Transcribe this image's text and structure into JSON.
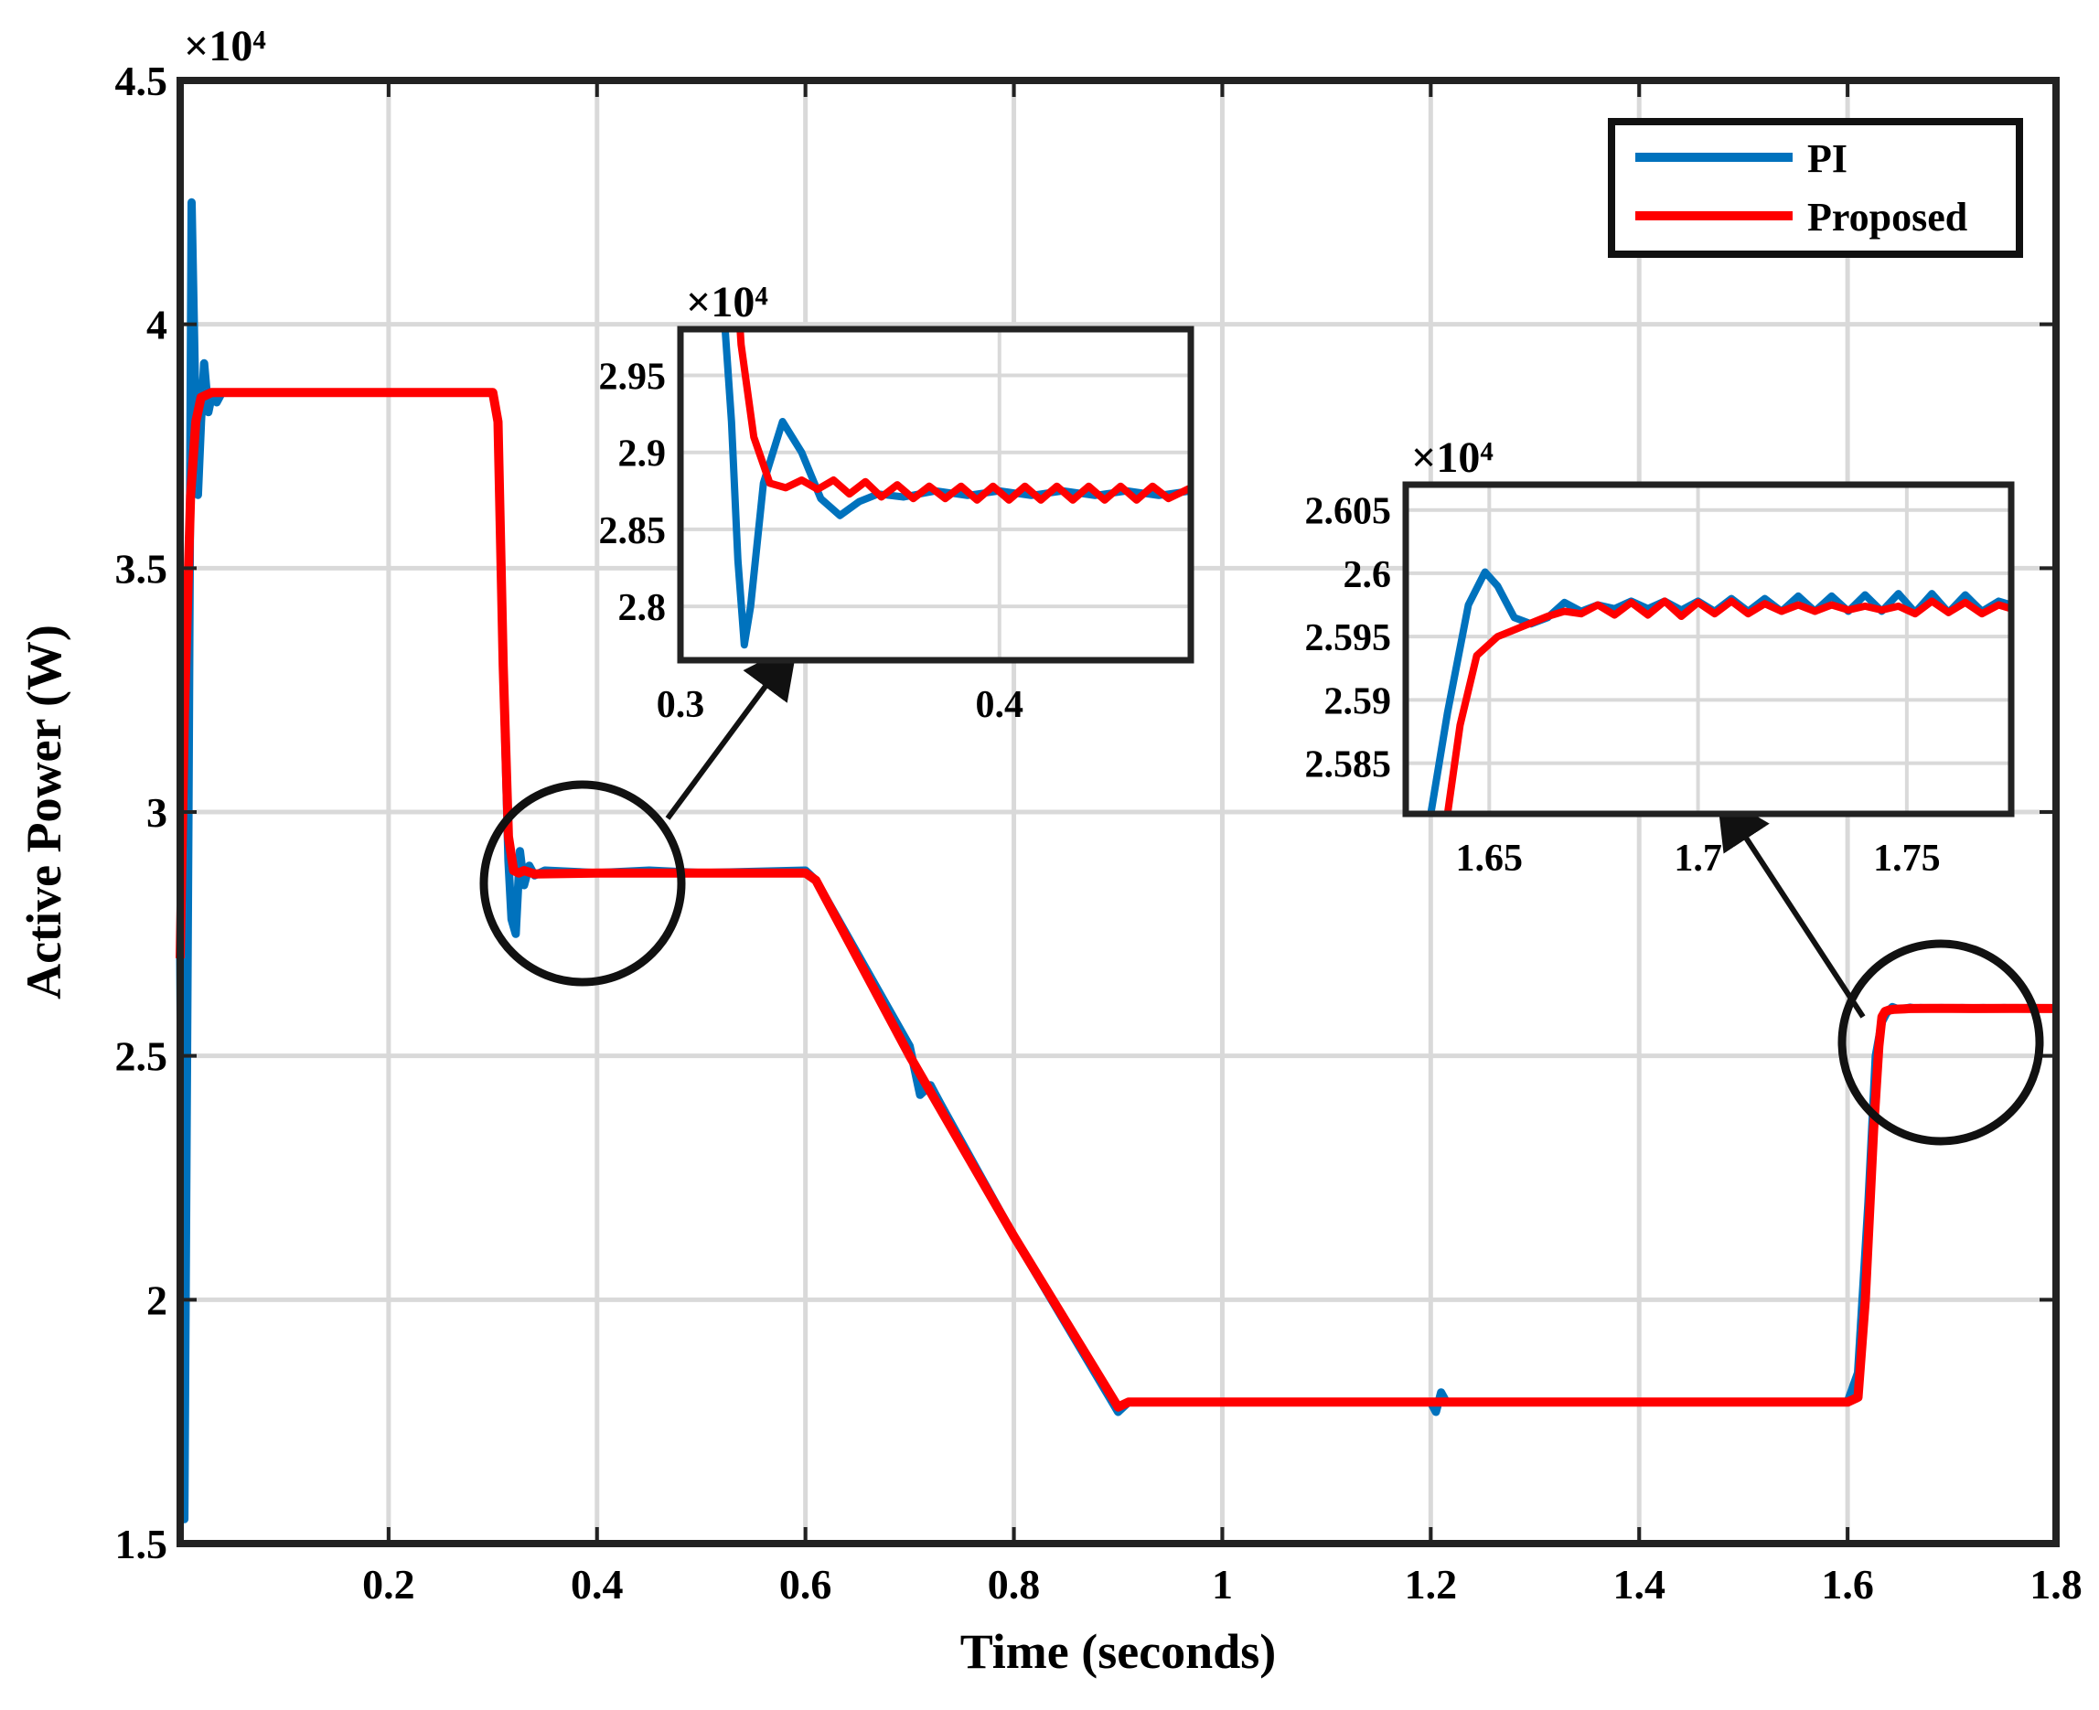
{
  "chart_data": {
    "type": "line",
    "xlabel": "Time (seconds)",
    "ylabel": "Active Power (W)",
    "y_exponent": "×10⁴",
    "xlim": [
      0.0,
      1.8
    ],
    "ylim": [
      1.5,
      4.5
    ],
    "xticks": [
      0.2,
      0.4,
      0.6,
      0.8,
      1,
      1.2,
      1.4,
      1.6,
      1.8
    ],
    "xtick_labels": [
      "0.2",
      "0.4",
      "0.6",
      "0.8",
      "1",
      "1.2",
      "1.4",
      "1.6",
      "1.8"
    ],
    "yticks": [
      1.5,
      2,
      2.5,
      3,
      3.5,
      4,
      4.5
    ],
    "ytick_labels": [
      "1.5",
      "2",
      "2.5",
      "3",
      "3.5",
      "4",
      "4.5"
    ],
    "grid": true,
    "legend_position": "top-right",
    "series": [
      {
        "name": "PI",
        "color": "#0072bd",
        "points": [
          [
            0.0,
            2.7
          ],
          [
            0.004,
            1.55
          ],
          [
            0.008,
            3.0
          ],
          [
            0.011,
            4.25
          ],
          [
            0.014,
            3.9
          ],
          [
            0.017,
            3.65
          ],
          [
            0.02,
            3.8
          ],
          [
            0.023,
            3.92
          ],
          [
            0.027,
            3.82
          ],
          [
            0.031,
            3.86
          ],
          [
            0.035,
            3.84
          ],
          [
            0.04,
            3.86
          ],
          [
            0.05,
            3.86
          ],
          [
            0.3,
            3.86
          ],
          [
            0.305,
            3.8
          ],
          [
            0.31,
            3.3
          ],
          [
            0.315,
            2.9
          ],
          [
            0.318,
            2.78
          ],
          [
            0.322,
            2.75
          ],
          [
            0.326,
            2.92
          ],
          [
            0.33,
            2.85
          ],
          [
            0.335,
            2.89
          ],
          [
            0.34,
            2.87
          ],
          [
            0.35,
            2.88
          ],
          [
            0.4,
            2.875
          ],
          [
            0.45,
            2.88
          ],
          [
            0.5,
            2.875
          ],
          [
            0.6,
            2.88
          ],
          [
            0.61,
            2.86
          ],
          [
            0.7,
            2.52
          ],
          [
            0.71,
            2.42
          ],
          [
            0.72,
            2.44
          ],
          [
            0.73,
            2.4
          ],
          [
            0.8,
            2.13
          ],
          [
            0.9,
            1.77
          ],
          [
            0.91,
            1.79
          ],
          [
            1.0,
            1.79
          ],
          [
            1.1,
            1.79
          ],
          [
            1.2,
            1.79
          ],
          [
            1.205,
            1.77
          ],
          [
            1.21,
            1.81
          ],
          [
            1.215,
            1.79
          ],
          [
            1.3,
            1.79
          ],
          [
            1.45,
            1.79
          ],
          [
            1.6,
            1.79
          ],
          [
            1.61,
            1.85
          ],
          [
            1.62,
            2.2
          ],
          [
            1.627,
            2.5
          ],
          [
            1.633,
            2.57
          ],
          [
            1.637,
            2.587
          ],
          [
            1.643,
            2.6
          ],
          [
            1.648,
            2.596
          ],
          [
            1.655,
            2.597
          ],
          [
            1.66,
            2.599
          ],
          [
            1.665,
            2.597
          ],
          [
            1.67,
            2.598
          ],
          [
            1.68,
            2.5975
          ],
          [
            1.69,
            2.598
          ],
          [
            1.7,
            2.5975
          ],
          [
            1.71,
            2.598
          ],
          [
            1.72,
            2.5975
          ],
          [
            1.73,
            2.598
          ],
          [
            1.74,
            2.5975
          ],
          [
            1.75,
            2.598
          ],
          [
            1.76,
            2.5975
          ],
          [
            1.8,
            2.597
          ]
        ]
      },
      {
        "name": "Proposed",
        "color": "#ff0000",
        "points": [
          [
            0.0,
            2.7
          ],
          [
            0.004,
            3.2
          ],
          [
            0.01,
            3.65
          ],
          [
            0.015,
            3.8
          ],
          [
            0.02,
            3.85
          ],
          [
            0.03,
            3.86
          ],
          [
            0.05,
            3.86
          ],
          [
            0.3,
            3.86
          ],
          [
            0.305,
            3.8
          ],
          [
            0.31,
            3.3
          ],
          [
            0.315,
            2.95
          ],
          [
            0.32,
            2.88
          ],
          [
            0.325,
            2.875
          ],
          [
            0.33,
            2.88
          ],
          [
            0.34,
            2.873
          ],
          [
            0.4,
            2.875
          ],
          [
            0.5,
            2.875
          ],
          [
            0.6,
            2.875
          ],
          [
            0.61,
            2.86
          ],
          [
            0.7,
            2.5
          ],
          [
            0.8,
            2.13
          ],
          [
            0.9,
            1.78
          ],
          [
            0.91,
            1.79
          ],
          [
            1.0,
            1.79
          ],
          [
            1.2,
            1.79
          ],
          [
            1.3,
            1.79
          ],
          [
            1.45,
            1.79
          ],
          [
            1.6,
            1.79
          ],
          [
            1.61,
            1.8
          ],
          [
            1.617,
            2.0
          ],
          [
            1.625,
            2.35
          ],
          [
            1.63,
            2.52
          ],
          [
            1.633,
            2.58
          ],
          [
            1.636,
            2.591
          ],
          [
            1.64,
            2.594
          ],
          [
            1.645,
            2.5955
          ],
          [
            1.655,
            2.5965
          ],
          [
            1.66,
            2.597
          ],
          [
            1.68,
            2.5972
          ],
          [
            1.7,
            2.5972
          ],
          [
            1.72,
            2.597
          ],
          [
            1.76,
            2.5972
          ],
          [
            1.8,
            2.597
          ]
        ]
      }
    ],
    "annotations": [
      {
        "type": "zoom_inset",
        "region_center": [
          0.4,
          2.875
        ],
        "xlim": [
          0.3,
          0.46
        ],
        "ylim": [
          2.765,
          2.98
        ],
        "xticks": [
          0.3,
          0.4
        ],
        "xtick_labels": [
          "0.3",
          "0.4"
        ],
        "yticks": [
          2.8,
          2.85,
          2.9,
          2.95
        ],
        "ytick_labels": [
          "2.8",
          "2.85",
          "2.9",
          "2.95"
        ],
        "y_exponent": "×10⁴",
        "series": [
          {
            "name": "PI",
            "points": [
              [
                0.31,
                3.1
              ],
              [
                0.316,
                2.92
              ],
              [
                0.318,
                2.83
              ],
              [
                0.32,
                2.775
              ],
              [
                0.322,
                2.8
              ],
              [
                0.326,
                2.88
              ],
              [
                0.332,
                2.92
              ],
              [
                0.338,
                2.9
              ],
              [
                0.344,
                2.87
              ],
              [
                0.35,
                2.859
              ],
              [
                0.356,
                2.868
              ],
              [
                0.362,
                2.873
              ],
              [
                0.37,
                2.871
              ],
              [
                0.38,
                2.875
              ],
              [
                0.39,
                2.872
              ],
              [
                0.4,
                2.875
              ],
              [
                0.41,
                2.872
              ],
              [
                0.42,
                2.875
              ],
              [
                0.43,
                2.872
              ],
              [
                0.44,
                2.875
              ],
              [
                0.45,
                2.872
              ],
              [
                0.46,
                2.875
              ]
            ]
          },
          {
            "name": "Proposed",
            "points": [
              [
                0.315,
                3.1
              ],
              [
                0.319,
                2.97
              ],
              [
                0.323,
                2.91
              ],
              [
                0.328,
                2.88
              ],
              [
                0.333,
                2.877
              ],
              [
                0.338,
                2.882
              ],
              [
                0.343,
                2.876
              ],
              [
                0.348,
                2.882
              ],
              [
                0.353,
                2.873
              ],
              [
                0.358,
                2.881
              ],
              [
                0.363,
                2.871
              ],
              [
                0.368,
                2.879
              ],
              [
                0.373,
                2.87
              ],
              [
                0.378,
                2.878
              ],
              [
                0.383,
                2.87
              ],
              [
                0.388,
                2.878
              ],
              [
                0.393,
                2.869
              ],
              [
                0.398,
                2.878
              ],
              [
                0.403,
                2.869
              ],
              [
                0.408,
                2.878
              ],
              [
                0.413,
                2.869
              ],
              [
                0.418,
                2.878
              ],
              [
                0.423,
                2.869
              ],
              [
                0.428,
                2.878
              ],
              [
                0.433,
                2.869
              ],
              [
                0.438,
                2.878
              ],
              [
                0.443,
                2.869
              ],
              [
                0.448,
                2.878
              ],
              [
                0.453,
                2.87
              ],
              [
                0.46,
                2.877
              ]
            ]
          }
        ]
      },
      {
        "type": "zoom_inset",
        "region_center": [
          1.69,
          2.59
        ],
        "xlim": [
          1.63,
          1.775
        ],
        "ylim": [
          2.581,
          2.607
        ],
        "xticks": [
          1.65,
          1.7,
          1.75
        ],
        "xtick_labels": [
          "1.65",
          "1.7",
          "1.75"
        ],
        "yticks": [
          2.585,
          2.59,
          2.595,
          2.6,
          2.605
        ],
        "ytick_labels": [
          "2.585",
          "2.59",
          "2.595",
          "2.6",
          "2.605"
        ],
        "y_exponent": "×10⁴",
        "series": [
          {
            "name": "PI",
            "points": [
              [
                1.636,
                2.581
              ],
              [
                1.64,
                2.589
              ],
              [
                1.645,
                2.5975
              ],
              [
                1.649,
                2.6001
              ],
              [
                1.652,
                2.599
              ],
              [
                1.656,
                2.5965
              ],
              [
                1.66,
                2.596
              ],
              [
                1.664,
                2.5965
              ],
              [
                1.668,
                2.5977
              ],
              [
                1.672,
                2.597
              ],
              [
                1.676,
                2.5975
              ],
              [
                1.68,
                2.5972
              ],
              [
                1.684,
                2.5978
              ],
              [
                1.688,
                2.5972
              ],
              [
                1.692,
                2.5978
              ],
              [
                1.696,
                2.5971
              ],
              [
                1.7,
                2.5978
              ],
              [
                1.704,
                2.597
              ],
              [
                1.708,
                2.598
              ],
              [
                1.712,
                2.597
              ],
              [
                1.716,
                2.598
              ],
              [
                1.72,
                2.597
              ],
              [
                1.724,
                2.5982
              ],
              [
                1.728,
                2.597
              ],
              [
                1.732,
                2.5982
              ],
              [
                1.736,
                2.597
              ],
              [
                1.74,
                2.5983
              ],
              [
                1.744,
                2.597
              ],
              [
                1.748,
                2.5984
              ],
              [
                1.752,
                2.5969
              ],
              [
                1.756,
                2.5984
              ],
              [
                1.76,
                2.5969
              ],
              [
                1.764,
                2.5983
              ],
              [
                1.768,
                2.597
              ],
              [
                1.772,
                2.5978
              ],
              [
                1.775,
                2.5975
              ]
            ]
          },
          {
            "name": "Proposed",
            "points": [
              [
                1.64,
                2.581
              ],
              [
                1.643,
                2.588
              ],
              [
                1.647,
                2.5935
              ],
              [
                1.652,
                2.595
              ],
              [
                1.658,
                2.5958
              ],
              [
                1.664,
                2.5966
              ],
              [
                1.668,
                2.597
              ],
              [
                1.672,
                2.5968
              ],
              [
                1.676,
                2.5975
              ],
              [
                1.68,
                2.5967
              ],
              [
                1.684,
                2.5977
              ],
              [
                1.688,
                2.5967
              ],
              [
                1.692,
                2.5978
              ],
              [
                1.696,
                2.5966
              ],
              [
                1.7,
                2.5977
              ],
              [
                1.704,
                2.5968
              ],
              [
                1.708,
                2.5978
              ],
              [
                1.712,
                2.5968
              ],
              [
                1.716,
                2.5976
              ],
              [
                1.72,
                2.597
              ],
              [
                1.724,
                2.5975
              ],
              [
                1.728,
                2.597
              ],
              [
                1.732,
                2.5975
              ],
              [
                1.736,
                2.5971
              ],
              [
                1.74,
                2.5974
              ],
              [
                1.744,
                2.5971
              ],
              [
                1.748,
                2.5974
              ],
              [
                1.752,
                2.5968
              ],
              [
                1.756,
                2.5978
              ],
              [
                1.76,
                2.5969
              ],
              [
                1.764,
                2.5977
              ],
              [
                1.768,
                2.5968
              ],
              [
                1.772,
                2.5975
              ],
              [
                1.775,
                2.5972
              ]
            ]
          }
        ]
      }
    ]
  }
}
